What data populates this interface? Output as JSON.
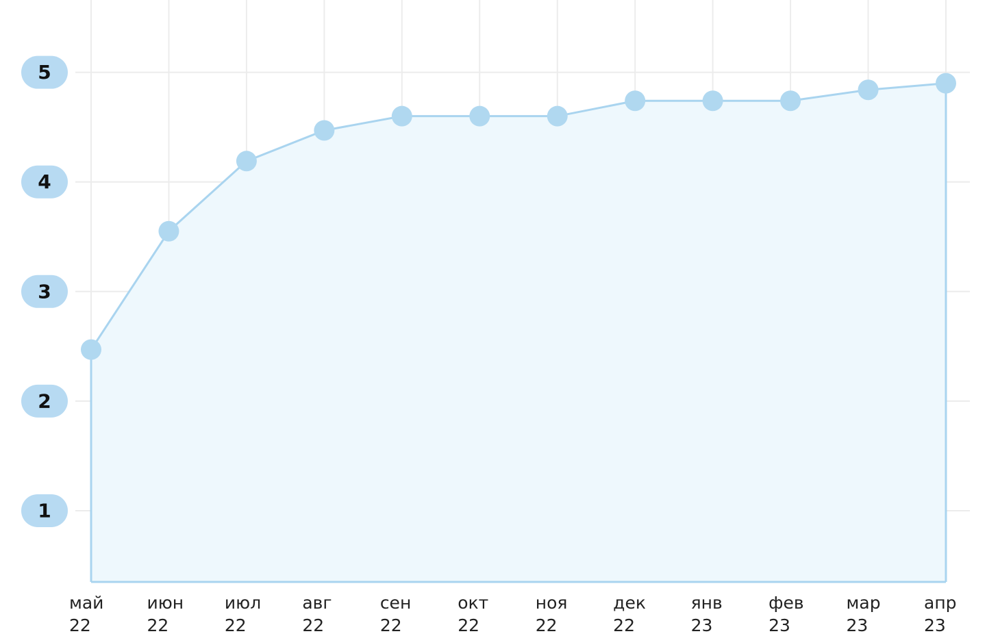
{
  "chart_data": {
    "type": "line",
    "categories": [
      "май 22",
      "июн 22",
      "июл 22",
      "авг 22",
      "сен 22",
      "окт 22",
      "ноя 22",
      "дек 22",
      "янв 23",
      "фев 23",
      "мар 23",
      "апр 23"
    ],
    "values": [
      2.47,
      3.55,
      4.19,
      4.47,
      4.6,
      4.6,
      4.6,
      4.74,
      4.74,
      4.74,
      4.84,
      4.9
    ],
    "color": "#a9d4ef",
    "fill_color": "#eef8fd",
    "marker_color": "#b0d8f0",
    "ylim": [
      0.35,
      5.66
    ],
    "yticks": [
      1,
      2,
      3,
      4,
      5
    ],
    "grid": true
  }
}
